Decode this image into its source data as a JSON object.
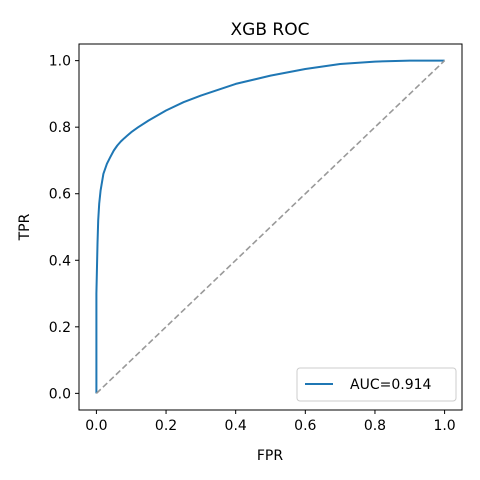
{
  "chart_data": {
    "type": "line",
    "title": "XGB ROC",
    "xlabel": "FPR",
    "ylabel": "TPR",
    "xlim": [
      -0.05,
      1.05
    ],
    "ylim": [
      -0.05,
      1.05
    ],
    "xticks": [
      "0.0",
      "0.2",
      "0.4",
      "0.6",
      "0.8",
      "1.0"
    ],
    "yticks": [
      "0.0",
      "0.2",
      "0.4",
      "0.6",
      "0.8",
      "1.0"
    ],
    "grid": false,
    "legend_position": "lower-right",
    "series": [
      {
        "name": "AUC=0.914",
        "color": "#1f77b4",
        "style": "solid",
        "x": [
          0.0,
          0.0,
          0.003,
          0.005,
          0.008,
          0.012,
          0.02,
          0.03,
          0.04,
          0.05,
          0.06,
          0.07,
          0.08,
          0.1,
          0.12,
          0.15,
          0.2,
          0.25,
          0.3,
          0.4,
          0.5,
          0.6,
          0.7,
          0.8,
          0.9,
          1.0
        ],
        "y": [
          0.0,
          0.3,
          0.45,
          0.52,
          0.57,
          0.61,
          0.66,
          0.69,
          0.71,
          0.73,
          0.745,
          0.757,
          0.767,
          0.785,
          0.8,
          0.82,
          0.85,
          0.875,
          0.895,
          0.93,
          0.955,
          0.975,
          0.99,
          0.997,
          1.0,
          1.0
        ]
      },
      {
        "name": "",
        "color": "#999999",
        "style": "dashed",
        "x": [
          0.0,
          1.0
        ],
        "y": [
          0.0,
          1.0
        ]
      }
    ]
  }
}
